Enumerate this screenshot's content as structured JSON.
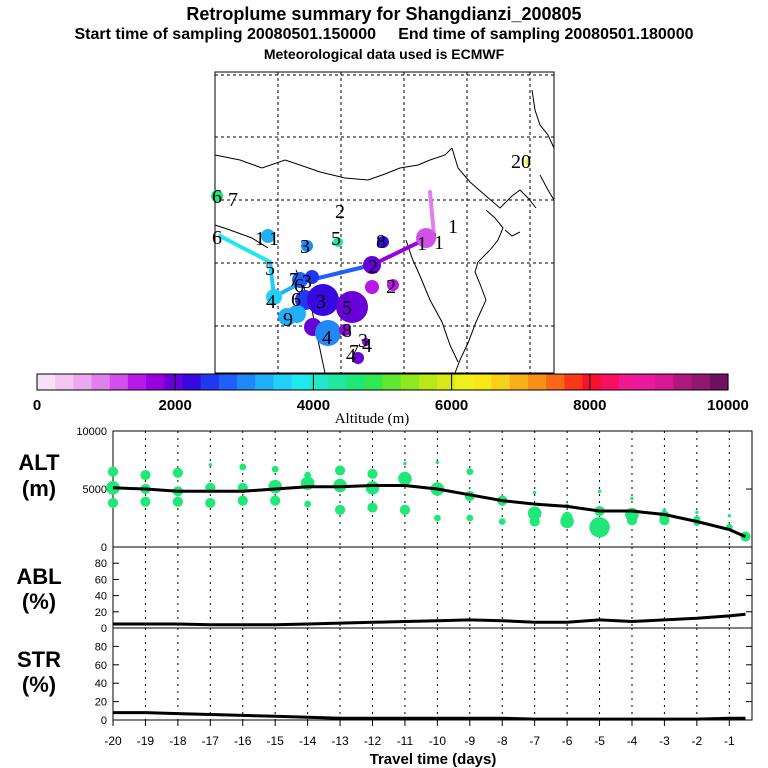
{
  "header": {
    "title": "Retroplume summary for Shangdianzi_200805",
    "start_label": "Start time of sampling 20080501.150000",
    "end_label": "End time of sampling 20080501.180000",
    "met_label": "Meteorological data used is ECMWF"
  },
  "colorbar": {
    "label": "Altitude (m)",
    "ticks": [
      "0",
      "2000",
      "4000",
      "6000",
      "8000",
      "10000"
    ],
    "colors": [
      "#f8e0f8",
      "#f2c8f2",
      "#eaa8ee",
      "#e080ea",
      "#d050e8",
      "#b818e8",
      "#9800e0",
      "#6800d8",
      "#3808e0",
      "#2038f0",
      "#2060f8",
      "#2088f8",
      "#20b0f8",
      "#20d0f8",
      "#20e8f0",
      "#20e8c8",
      "#20e8a0",
      "#20e878",
      "#30e850",
      "#60e830",
      "#90e820",
      "#b8e818",
      "#d8e818",
      "#f0f020",
      "#f8e818",
      "#f8d018",
      "#f8b018",
      "#f89018",
      "#f86818",
      "#f83818",
      "#f81030",
      "#f81060",
      "#f01890",
      "#e818a0",
      "#d81890",
      "#b01880",
      "#901870",
      "#701060"
    ]
  },
  "map_labels": [
    {
      "text": "20",
      "kind": "label"
    },
    {
      "text": "6",
      "kind": "label"
    },
    {
      "text": "7",
      "kind": "label"
    },
    {
      "text": "6",
      "kind": "label"
    },
    {
      "text": "2",
      "kind": "label"
    },
    {
      "text": "1",
      "kind": "label"
    },
    {
      "text": "1",
      "kind": "label"
    },
    {
      "text": "5",
      "kind": "label"
    },
    {
      "text": "3",
      "kind": "label"
    },
    {
      "text": "8",
      "kind": "label"
    },
    {
      "text": "1",
      "kind": "label"
    },
    {
      "text": "5",
      "kind": "label"
    },
    {
      "text": "1",
      "kind": "label"
    },
    {
      "text": "3",
      "kind": "label"
    },
    {
      "text": "2",
      "kind": "label"
    },
    {
      "text": "2",
      "kind": "label"
    },
    {
      "text": "7",
      "kind": "label"
    },
    {
      "text": "4",
      "kind": "label"
    },
    {
      "text": "6",
      "kind": "label"
    },
    {
      "text": "3",
      "kind": "label"
    },
    {
      "text": "5",
      "kind": "label"
    },
    {
      "text": "9",
      "kind": "label"
    },
    {
      "text": "4",
      "kind": "label"
    },
    {
      "text": "8",
      "kind": "label"
    },
    {
      "text": "4",
      "kind": "label"
    },
    {
      "text": "3",
      "kind": "label"
    },
    {
      "text": "4",
      "kind": "label"
    },
    {
      "text": "7",
      "kind": "label"
    },
    {
      "text": "6",
      "kind": "label"
    },
    {
      "text": "1",
      "kind": "label"
    }
  ],
  "chart_data": [
    {
      "type": "scatter",
      "panel": "ALT",
      "ylabel": "ALT",
      "yunit": "(m)",
      "ylim": [
        0,
        10000
      ],
      "yticks": [
        0,
        5000,
        10000
      ],
      "ytick_labels": [
        "0",
        "5000",
        "10000"
      ],
      "line": {
        "x": [
          -20,
          -19,
          -18,
          -17,
          -16,
          -15,
          -14,
          -13,
          -12,
          -11,
          -10,
          -9,
          -8,
          -7,
          -6,
          -5,
          -4,
          -3,
          -2,
          -1,
          -0.5
        ],
        "y": [
          5100,
          5000,
          4800,
          4800,
          4800,
          5000,
          5200,
          5200,
          5300,
          5300,
          5000,
          4500,
          4000,
          3700,
          3500,
          3100,
          3100,
          2800,
          2200,
          1500,
          900
        ]
      },
      "clusters": {
        "x": [
          -20,
          -19,
          -18,
          -17,
          -16,
          -15,
          -14,
          -13,
          -12,
          -11,
          -10,
          -9,
          -8,
          -7,
          -6,
          -5,
          -4,
          -3,
          -2,
          -1,
          -0.5
        ],
        "y": [
          [
            6500,
            5100,
            3800
          ],
          [
            6200,
            5000,
            3900
          ],
          [
            6400,
            4800,
            3900
          ],
          [
            7100,
            5100,
            3800
          ],
          [
            6900,
            5100,
            4000
          ],
          [
            6700,
            5200,
            4000
          ],
          [
            6200,
            5500,
            3700
          ],
          [
            6600,
            5300,
            3200
          ],
          [
            6300,
            5100,
            3400
          ],
          [
            7200,
            5900,
            3200
          ],
          [
            7300,
            5000,
            2500
          ],
          [
            6500,
            4400,
            2500
          ],
          [
            3700,
            4000,
            2200
          ],
          [
            4700,
            2900,
            2200
          ],
          [
            3600,
            2600,
            2200
          ],
          [
            4800,
            3100,
            1700
          ],
          [
            4200,
            2800,
            2300
          ],
          [
            3200,
            2700,
            2300
          ],
          [
            3000,
            2400,
            2100
          ],
          [
            2700,
            1900,
            1700
          ],
          [
            900
          ]
        ],
        "sizes": [
          [
            3,
            4,
            3
          ],
          [
            3,
            3,
            3
          ],
          [
            3,
            3,
            3
          ],
          [
            1,
            3,
            3
          ],
          [
            2,
            3,
            3
          ],
          [
            2,
            4,
            3
          ],
          [
            2,
            4,
            2
          ],
          [
            3,
            4,
            3
          ],
          [
            3,
            4,
            3
          ],
          [
            1,
            4,
            3
          ],
          [
            1,
            4,
            2
          ],
          [
            2,
            3,
            2
          ],
          [
            1,
            3,
            2
          ],
          [
            1,
            4,
            3
          ],
          [
            1,
            3,
            4
          ],
          [
            1,
            3,
            6
          ],
          [
            1,
            4,
            3
          ],
          [
            1,
            3,
            3
          ],
          [
            1,
            2,
            2
          ],
          [
            1,
            1,
            2
          ],
          [
            3
          ]
        ]
      }
    },
    {
      "type": "line",
      "panel": "ABL",
      "ylabel": "ABL",
      "yunit": "(%)",
      "ylim": [
        0,
        100
      ],
      "yticks": [
        0,
        20,
        40,
        60,
        80
      ],
      "ytick_labels": [
        "0",
        "20",
        "40",
        "60",
        "80"
      ],
      "x": [
        -20,
        -19,
        -18,
        -17,
        -16,
        -15,
        -14,
        -13,
        -12,
        -11,
        -10,
        -9,
        -8,
        -7,
        -6,
        -5,
        -4,
        -3,
        -2,
        -1,
        -0.5
      ],
      "y": [
        5,
        5,
        5,
        4,
        4,
        4,
        5,
        6,
        7,
        8,
        9,
        10,
        9,
        7,
        7,
        10,
        8,
        10,
        12,
        15,
        17
      ]
    },
    {
      "type": "line",
      "panel": "STR",
      "ylabel": "STR",
      "yunit": "(%)",
      "ylim": [
        0,
        100
      ],
      "yticks": [
        0,
        20,
        40,
        60,
        80
      ],
      "ytick_labels": [
        "0",
        "20",
        "40",
        "60",
        "80"
      ],
      "x": [
        -20,
        -19,
        -18,
        -17,
        -16,
        -15,
        -14,
        -13,
        -12,
        -11,
        -10,
        -9,
        -8,
        -7,
        -6,
        -5,
        -4,
        -3,
        -2,
        -1,
        -0.5
      ],
      "y": [
        8,
        8,
        7,
        6,
        5,
        4,
        3,
        2,
        2,
        2,
        2,
        2,
        2,
        1,
        1,
        1,
        1,
        1,
        1,
        2,
        2
      ]
    },
    {
      "type": "axis",
      "xlabel": "Travel time (days)",
      "xlim": [
        -20,
        -0.3
      ],
      "xticks": [
        -20,
        -19,
        -18,
        -17,
        -16,
        -15,
        -14,
        -13,
        -12,
        -11,
        -10,
        -9,
        -8,
        -7,
        -6,
        -5,
        -4,
        -3,
        -2,
        -1
      ],
      "xtick_labels": [
        "-20",
        "-19",
        "-18",
        "-17",
        "-16",
        "-15",
        "-14",
        "-13",
        "-12",
        "-11",
        "-10",
        "-9",
        "-8",
        "-7",
        "-6",
        "-5",
        "-4",
        "-3",
        "-2",
        "-1"
      ]
    }
  ]
}
